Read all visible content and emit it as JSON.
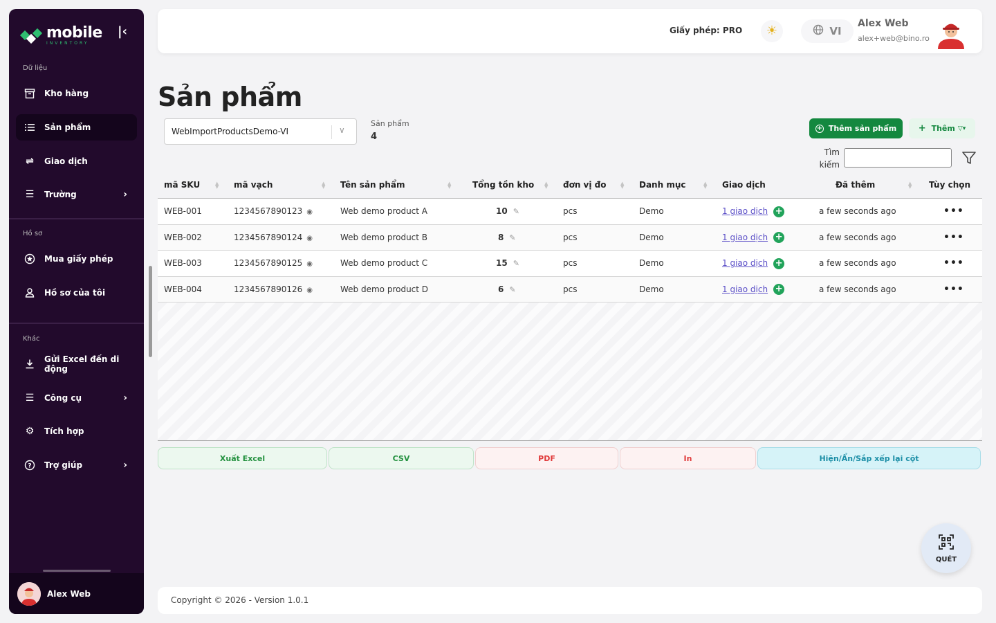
{
  "sidebar": {
    "brand_name": "mobile",
    "brand_sub": "INVENTORY",
    "collapse_icon": "collapse-left-icon",
    "sections": [
      {
        "label": "Dữ liệu"
      },
      {
        "label": "Hồ sơ"
      },
      {
        "label": "Khác"
      }
    ],
    "items": [
      {
        "label": "Kho hàng",
        "icon": "archive-icon"
      },
      {
        "label": "Sản phẩm",
        "icon": "list-icon",
        "active": true
      },
      {
        "label": "Giao dịch",
        "icon": "transfer-icon"
      },
      {
        "label": "Trường",
        "icon": "menu-icon",
        "has_children": true
      },
      {
        "label": "Mua giấy phép",
        "icon": "badge-icon"
      },
      {
        "label": "Hồ sơ của tôi",
        "icon": "user-icon"
      },
      {
        "label": "Gửi Excel đến di động",
        "icon": "download-icon"
      },
      {
        "label": "Công cụ",
        "icon": "menu-icon",
        "has_children": true
      },
      {
        "label": "Tích hợp",
        "icon": "puzzle-icon"
      },
      {
        "label": "Trợ giúp",
        "icon": "help-icon",
        "has_children": true
      }
    ],
    "user_name": "Alex Web"
  },
  "header": {
    "license_label": "Giấy phép:",
    "license_value": "PRO",
    "theme_icon": "sun-icon",
    "language": "VI",
    "user_name": "Alex Web",
    "user_email": "alex+web@bino.ro"
  },
  "page": {
    "title": "Sản phẩm",
    "inventory_select": "WebImportProductsDemo-VI",
    "count_label": "Sản phẩm",
    "count_value": "4",
    "add_button": "Thêm sản phẩm",
    "more_button": "Thêm",
    "search_label": "Tìm kiếm",
    "search_value": ""
  },
  "table": {
    "columns": [
      "mã SKU",
      "mã vạch",
      "Tên sản phẩm",
      "Tổng tồn kho",
      "đơn vị đo",
      "Danh mục",
      "Giao dịch",
      "Đã thêm",
      "Tùy chọn"
    ],
    "rows": [
      {
        "sku": "WEB-001",
        "barcode": "1234567890123",
        "name": "Web demo product A",
        "qty": "10",
        "unit": "pcs",
        "category": "Demo",
        "tx": "1 giao dịch",
        "added": "a few seconds ago"
      },
      {
        "sku": "WEB-002",
        "barcode": "1234567890124",
        "name": "Web demo product B",
        "qty": "8",
        "unit": "pcs",
        "category": "Demo",
        "tx": "1 giao dịch",
        "added": "a few seconds ago"
      },
      {
        "sku": "WEB-003",
        "barcode": "1234567890125",
        "name": "Web demo product C",
        "qty": "15",
        "unit": "pcs",
        "category": "Demo",
        "tx": "1 giao dịch",
        "added": "a few seconds ago"
      },
      {
        "sku": "WEB-004",
        "barcode": "1234567890126",
        "name": "Web demo product D",
        "qty": "6",
        "unit": "pcs",
        "category": "Demo",
        "tx": "1 giao dịch",
        "added": "a few seconds ago"
      }
    ]
  },
  "export": {
    "excel": "Xuất Excel",
    "csv": "CSV",
    "pdf": "PDF",
    "print": "In",
    "columns": "Hiện/Ẩn/Sắp xếp lại cột"
  },
  "scan_label": "QUÉT",
  "footer": "Copyright © 2026 - Version 1.0.1",
  "colors": {
    "sidebar_bg": "#220a2c",
    "accent_green": "#14883f",
    "link": "#5b4fc7"
  }
}
